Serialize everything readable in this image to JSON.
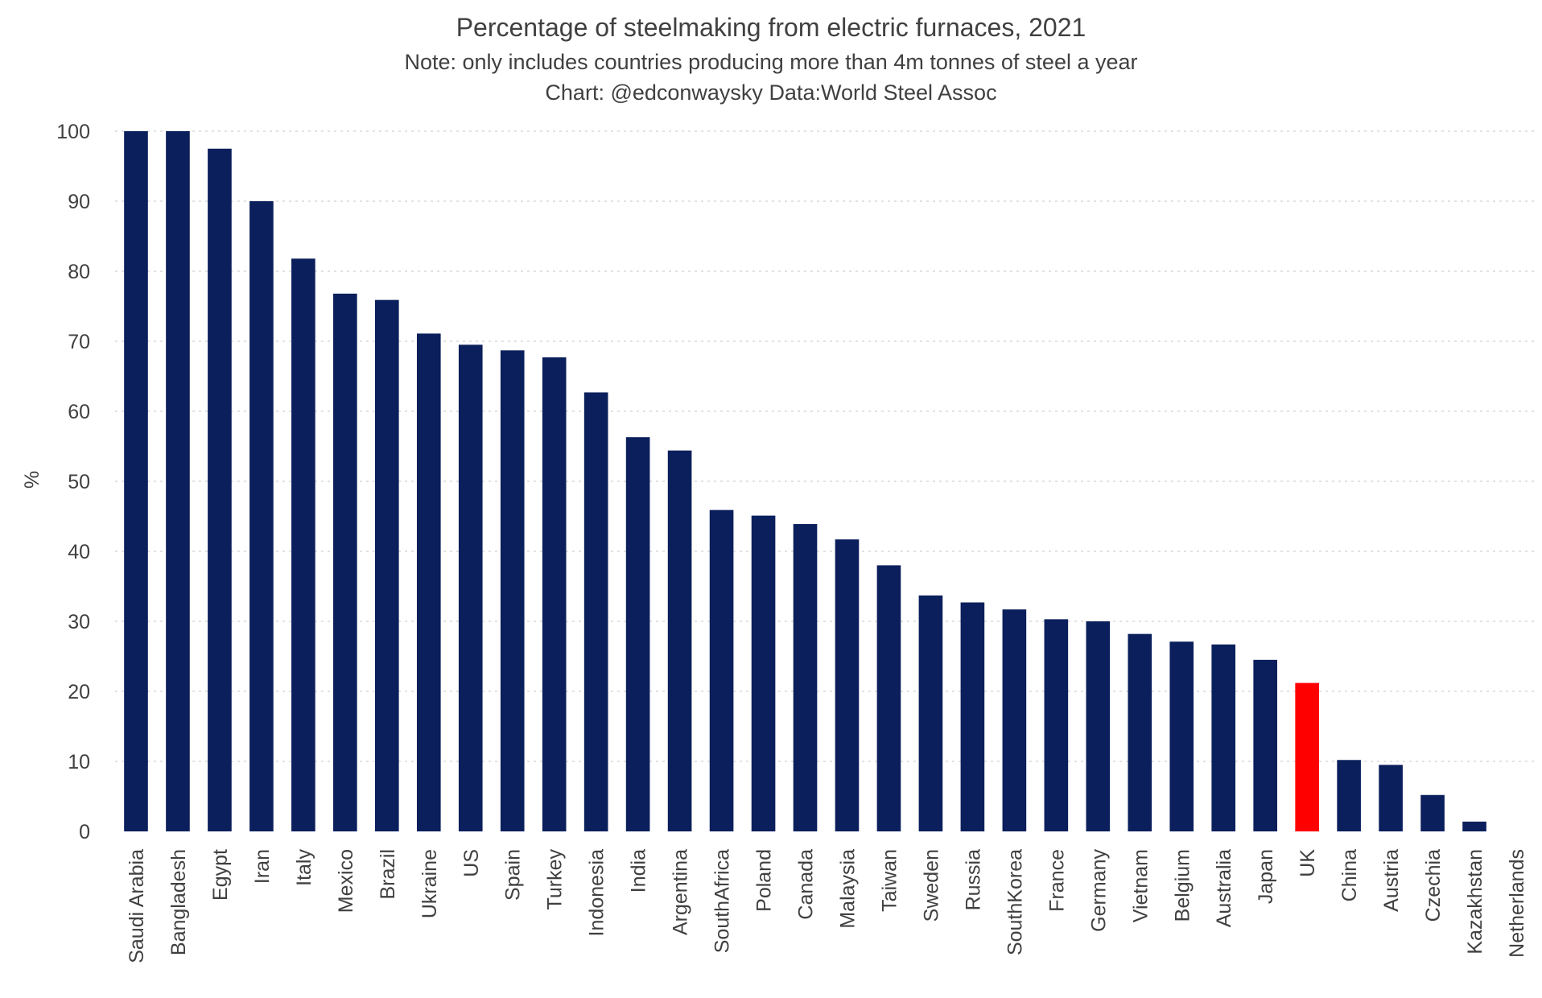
{
  "chart_data": {
    "type": "bar",
    "title": "Percentage of steelmaking from electric furnaces, 2021",
    "subtitle": "Note: only includes countries producing more than 4m tonnes of steel a year",
    "source": "Chart: @edconwaysky Data:World Steel Assoc",
    "xlabel": "",
    "ylabel": "%",
    "ylim": [
      0,
      100
    ],
    "yticks": [
      0,
      10,
      20,
      30,
      40,
      50,
      60,
      70,
      80,
      90,
      100
    ],
    "grid": "horizontal dotted",
    "categories": [
      "Saudi Arabia",
      "Bangladesh",
      "Egypt",
      "Iran",
      "Italy",
      "Mexico",
      "Brazil",
      "Ukraine",
      "US",
      "Spain",
      "Turkey",
      "Indonesia",
      "India",
      "Argentina",
      "SouthAfrica",
      "Poland",
      "Canada",
      "Malaysia",
      "Taiwan",
      "Sweden",
      "Russia",
      "SouthKorea",
      "France",
      "Germany",
      "Vietnam",
      "Belgium",
      "Australia",
      "Japan",
      "UK",
      "China",
      "Austria",
      "Czechia",
      "Kazakhstan",
      "Netherlands"
    ],
    "values": [
      100,
      100,
      97.5,
      90,
      81.8,
      76.8,
      75.9,
      71.1,
      69.5,
      68.7,
      67.7,
      62.7,
      56.3,
      54.4,
      45.9,
      45.1,
      43.9,
      41.7,
      38.0,
      33.7,
      32.7,
      31.7,
      30.3,
      30.0,
      28.2,
      27.1,
      26.7,
      24.5,
      21.2,
      10.2,
      9.5,
      5.2,
      1.4,
      0
    ],
    "colors": {
      "default_bar": "#0b1f5c",
      "highlight_bar": "#ff0000",
      "highlight_category": "UK",
      "grid": "#d9d9d9",
      "text": "#404040"
    }
  }
}
